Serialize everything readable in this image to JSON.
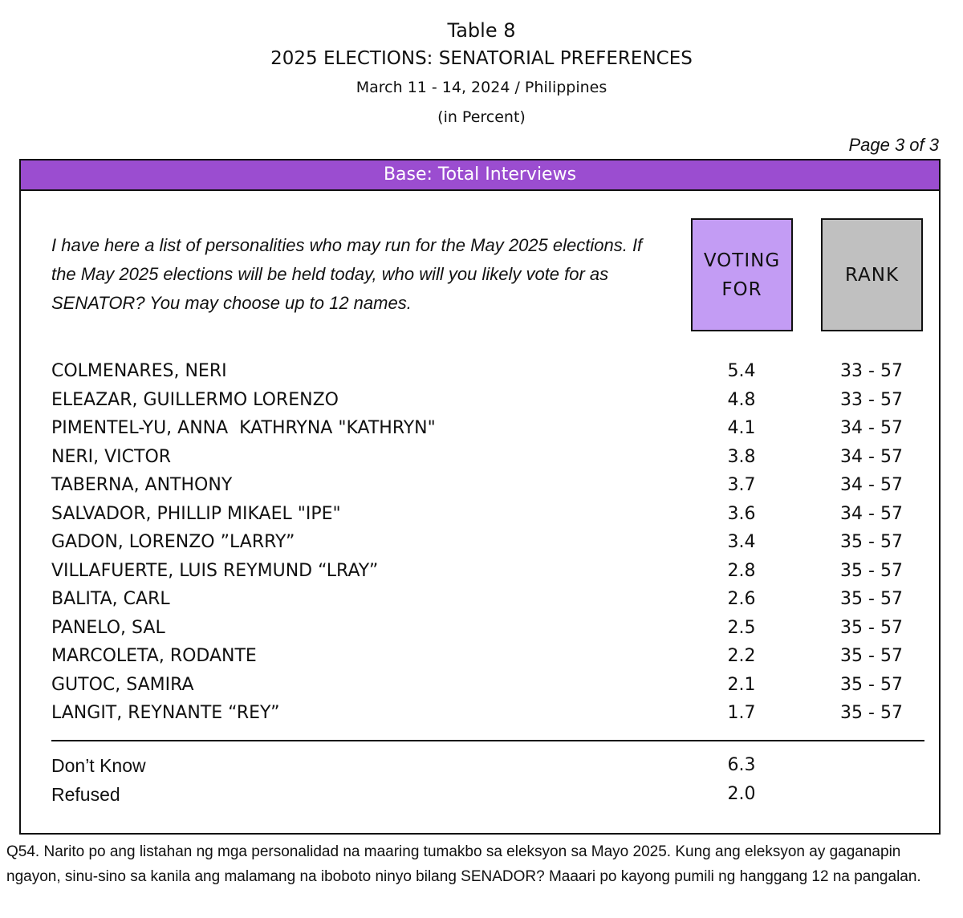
{
  "header": {
    "title": "Table 8",
    "subtitle": "2025 ELECTIONS: SENATORIAL PREFERENCES",
    "date": "March 11 - 14, 2024 / Philippines",
    "unit": "(in Percent)",
    "page": "Page 3 of 3"
  },
  "table": {
    "base": "Base: Total Interviews",
    "question": "I have here a list of personalities who may run for the May 2025 elections. If the May 2025 elections will be held today, who will you likely vote for as SENATOR? You may choose up to 12 names.",
    "columns": [
      "VOTING FOR",
      "RANK"
    ],
    "rows": [
      [
        "COLMENARES, NERI",
        "5.4",
        "33 - 57"
      ],
      [
        "ELEAZAR, GUILLERMO LORENZO",
        "4.8",
        "33 - 57"
      ],
      [
        "PIMENTEL-YU, ANNA  KATHRYNA \"KATHRYN\"",
        "4.1",
        "34 - 57"
      ],
      [
        "NERI, VICTOR",
        "3.8",
        "34 - 57"
      ],
      [
        "TABERNA, ANTHONY",
        "3.7",
        "34 - 57"
      ],
      [
        "SALVADOR, PHILLIP MIKAEL \"IPE\"",
        "3.6",
        "34 - 57"
      ],
      [
        "GADON, LORENZO ”LARRY”",
        "3.4",
        "35 - 57"
      ],
      [
        "VILLAFUERTE, LUIS REYMUND “LRAY”",
        "2.8",
        "35 - 57"
      ],
      [
        "BALITA, CARL",
        "2.6",
        "35 - 57"
      ],
      [
        "PANELO, SAL",
        "2.5",
        "35 - 57"
      ],
      [
        "MARCOLETA, RODANTE",
        "2.2",
        "35 - 57"
      ],
      [
        "GUTOC, SAMIRA",
        "2.1",
        "35 - 57"
      ],
      [
        "LANGIT, REYNANTE “REY”",
        "1.7",
        "35 - 57"
      ]
    ],
    "other_rows": [
      [
        "Don’t Know",
        "6.3"
      ],
      [
        "Refused",
        "2.0"
      ]
    ]
  },
  "footnote": {
    "label": "Q54.",
    "text": "Narito po ang listahan ng mga personalidad na maaring tumakbo sa eleksyon sa Mayo 2025. Kung ang eleksyon ay gaganapin ngayon, sinu-sino sa kanila ang malamang na iboboto ninyo bilang SENADOR?  Maaari po kayong pumili ng hanggang 12 na pangalan."
  }
}
